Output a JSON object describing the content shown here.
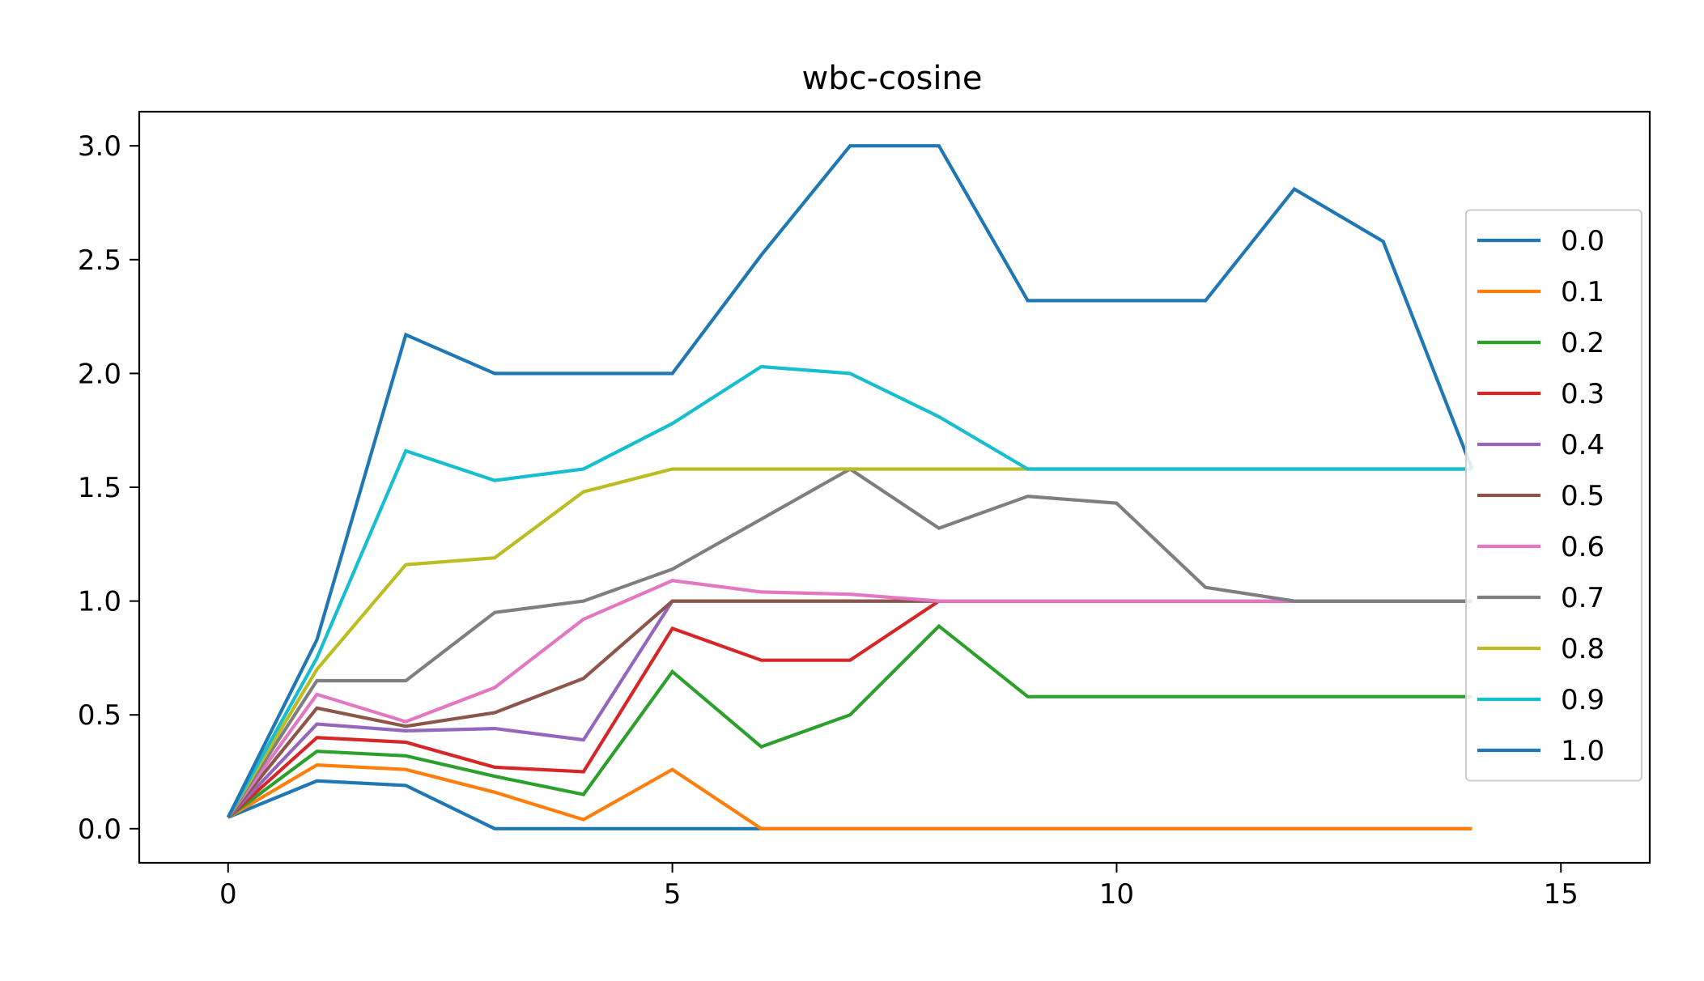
{
  "chart_data": {
    "type": "line",
    "title": "wbc-cosine",
    "xlabel": "",
    "ylabel": "",
    "xlim": [
      -1,
      16
    ],
    "ylim": [
      -0.15,
      3.15
    ],
    "x_ticks": [
      0,
      5,
      10,
      15
    ],
    "y_ticks": [
      0.0,
      0.5,
      1.0,
      1.5,
      2.0,
      2.5,
      3.0
    ],
    "y_tick_labels": [
      "0.0",
      "0.5",
      "1.0",
      "1.5",
      "2.0",
      "2.5",
      "3.0"
    ],
    "grid": false,
    "legend_position": "right",
    "x": [
      0,
      1,
      2,
      3,
      4,
      5,
      6,
      7,
      8,
      9,
      10,
      11,
      12,
      13,
      14
    ],
    "series": [
      {
        "name": "0.0",
        "color": "#1f77b4",
        "values": [
          0.05,
          0.21,
          0.19,
          0.0,
          0.0,
          0.0,
          0.0,
          0.0,
          0.0,
          0.0,
          0.0,
          0.0,
          0.0,
          0.0,
          0.0
        ]
      },
      {
        "name": "0.1",
        "color": "#ff7f0e",
        "values": [
          0.05,
          0.28,
          0.26,
          0.16,
          0.04,
          0.26,
          0.0,
          0.0,
          0.0,
          0.0,
          0.0,
          0.0,
          0.0,
          0.0,
          0.0
        ]
      },
      {
        "name": "0.2",
        "color": "#2ca02c",
        "values": [
          0.05,
          0.34,
          0.32,
          0.23,
          0.15,
          0.69,
          0.36,
          0.5,
          0.89,
          0.58,
          0.58,
          0.58,
          0.58,
          0.58,
          0.58
        ]
      },
      {
        "name": "0.3",
        "color": "#d62728",
        "values": [
          0.05,
          0.4,
          0.38,
          0.27,
          0.25,
          0.88,
          0.74,
          0.74,
          1.0,
          1.0,
          1.0,
          1.0,
          1.0,
          1.0,
          1.0
        ]
      },
      {
        "name": "0.4",
        "color": "#9467bd",
        "values": [
          0.05,
          0.46,
          0.43,
          0.44,
          0.39,
          1.0,
          1.0,
          1.0,
          1.0,
          1.0,
          1.0,
          1.0,
          1.0,
          1.0,
          1.0
        ]
      },
      {
        "name": "0.5",
        "color": "#8c564b",
        "values": [
          0.05,
          0.53,
          0.45,
          0.51,
          0.66,
          1.0,
          1.0,
          1.0,
          1.0,
          1.0,
          1.0,
          1.0,
          1.0,
          1.0,
          1.0
        ]
      },
      {
        "name": "0.6",
        "color": "#e377c2",
        "values": [
          0.05,
          0.59,
          0.47,
          0.62,
          0.92,
          1.09,
          1.04,
          1.03,
          1.0,
          1.0,
          1.0,
          1.0,
          1.0,
          1.0,
          1.0
        ]
      },
      {
        "name": "0.7",
        "color": "#7f7f7f",
        "values": [
          0.05,
          0.65,
          0.65,
          0.95,
          1.0,
          1.14,
          1.36,
          1.58,
          1.32,
          1.46,
          1.43,
          1.06,
          1.0,
          1.0,
          1.0
        ]
      },
      {
        "name": "0.8",
        "color": "#bcbd22",
        "values": [
          0.05,
          0.7,
          1.16,
          1.19,
          1.48,
          1.58,
          1.58,
          1.58,
          1.58,
          1.58,
          1.58,
          1.58,
          1.58,
          1.58,
          1.58
        ]
      },
      {
        "name": "0.9",
        "color": "#17becf",
        "values": [
          0.05,
          0.75,
          1.66,
          1.53,
          1.58,
          1.78,
          2.03,
          2.0,
          1.81,
          1.58,
          1.58,
          1.58,
          1.58,
          1.58,
          1.58
        ]
      },
      {
        "name": "1.0",
        "color": "#1f77b4",
        "values": [
          0.05,
          0.83,
          2.17,
          2.0,
          2.0,
          2.0,
          2.52,
          3.0,
          3.0,
          2.32,
          2.32,
          2.32,
          2.81,
          2.58,
          1.58
        ]
      }
    ]
  }
}
